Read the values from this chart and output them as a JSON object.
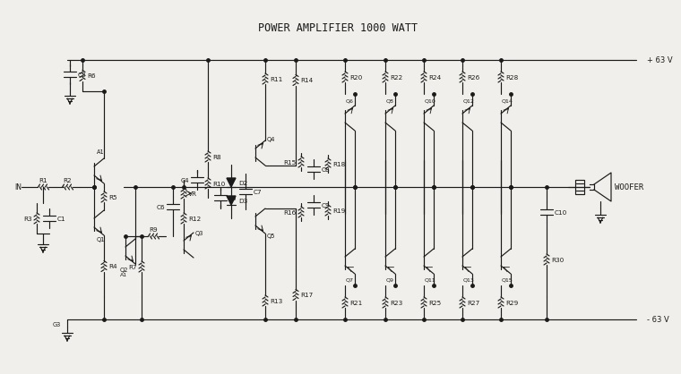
{
  "title": "POWER AMPLIFIER 1000 WATT",
  "bg_color": "#f0efeb",
  "line_color": "#1a1a1a",
  "text_color": "#1a1a1a",
  "title_fontsize": 8.5,
  "label_fontsize": 5.2,
  "fig_width": 7.35,
  "fig_height": 3.99,
  "vcc_label": "+ 63 V",
  "vee_label": "- 63 V",
  "woofer_label": "WOOFER"
}
